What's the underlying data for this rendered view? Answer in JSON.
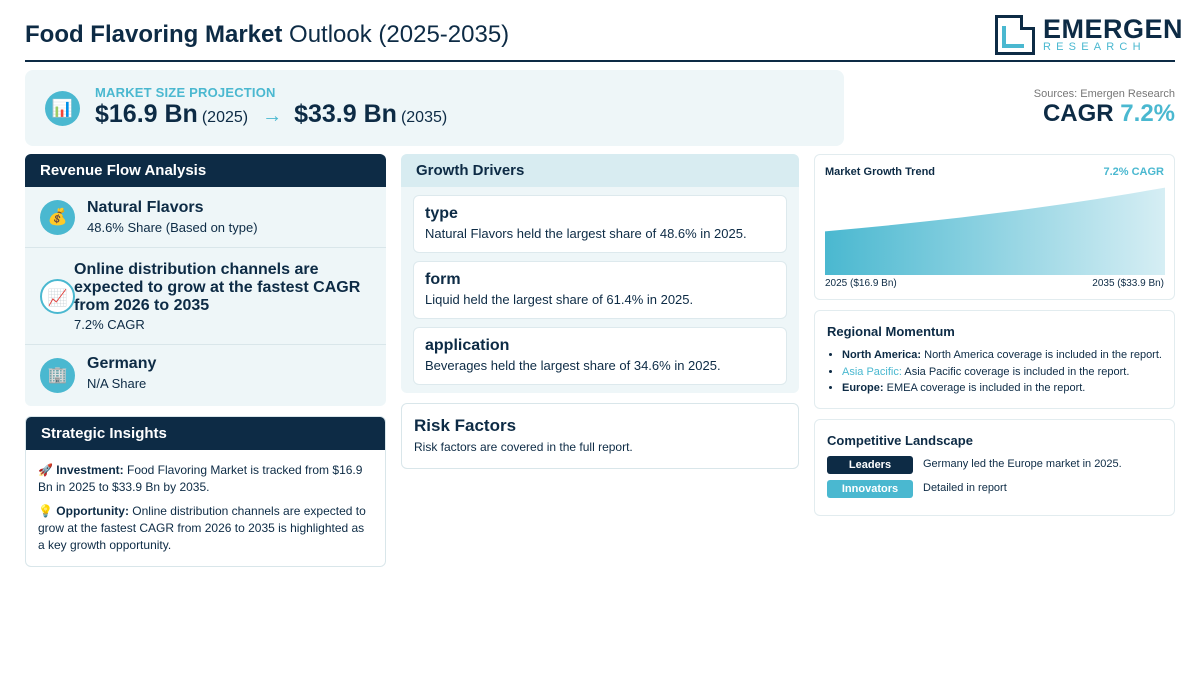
{
  "header": {
    "title_bold": "Food Flavoring Market",
    "title_rest": " Outlook (2025-2035)",
    "logo_name": "EMERGEN",
    "logo_sub": "RESEARCH"
  },
  "projection": {
    "icon": "bar-chart-icon",
    "label": "MARKET SIZE PROJECTION",
    "start_value": "$16.9 Bn",
    "start_year": "(2025)",
    "arrow": "→",
    "end_value": "$33.9 Bn",
    "end_year": "(2035)"
  },
  "summary": {
    "sources": "Sources: Emergen Research",
    "cagr_label": "CAGR",
    "cagr_value": "7.2%"
  },
  "revenue_flow": {
    "title": "Revenue Flow Analysis",
    "items": [
      {
        "icon": "money-bag-icon",
        "title": "Natural Flavors",
        "subtitle": "48.6% Share (Based on type)"
      },
      {
        "icon": "trend-chart-icon",
        "title": "Online distribution channels are expected to grow at the fastest CAGR from 2026 to 2035",
        "subtitle": "7.2% CAGR"
      },
      {
        "icon": "office-building-icon",
        "title": "Germany",
        "subtitle": "N/A Share"
      }
    ]
  },
  "strategic_insights": {
    "title": "Strategic Insights",
    "items": [
      {
        "icon": "🚀",
        "label": "Investment:",
        "text": " Food Flavoring Market is tracked from $16.9 Bn in 2025 to $33.9 Bn by 2035."
      },
      {
        "icon": "💡",
        "label": "Opportunity:",
        "text": " Online distribution channels are expected to grow at the fastest CAGR from 2026 to 2035 is highlighted as a key growth opportunity."
      }
    ]
  },
  "growth_drivers": {
    "title": "Growth Drivers",
    "items": [
      {
        "title": "type",
        "desc": "Natural Flavors held the largest share of 48.6% in 2025."
      },
      {
        "title": "form",
        "desc": "Liquid held the largest share of 61.4% in 2025."
      },
      {
        "title": "application",
        "desc": "Beverages held the largest share of 34.6% in 2025."
      }
    ]
  },
  "risk_factors": {
    "title": "Risk Factors",
    "desc": "Risk factors are covered in the full report."
  },
  "chart_data": {
    "type": "area",
    "title": "Market Growth Trend",
    "annotation": "7.2% CAGR",
    "x": [
      2025,
      2035
    ],
    "series": [
      {
        "values": [
          16.9,
          33.9
        ]
      }
    ],
    "start_label": "2025 ($16.9 Bn)",
    "end_label": "2035 ($33.9 Bn)",
    "grid": false,
    "fill_color_start": "#4ab8d0",
    "fill_color_end": "#d6eef4"
  },
  "regional_momentum": {
    "title": "Regional Momentum",
    "items": [
      {
        "name": "North America:",
        "text": " North America coverage is included in the report.",
        "highlight": false
      },
      {
        "name": "Asia Pacific:",
        "text": " Asia Pacific coverage is included in the report.",
        "highlight": true
      },
      {
        "name": "Europe:",
        "text": " EMEA coverage is included in the report.",
        "highlight": false
      }
    ]
  },
  "competitive_landscape": {
    "title": "Competitive Landscape",
    "items": [
      {
        "badge": "Leaders",
        "text": "Germany led the Europe market in 2025."
      },
      {
        "badge": "Innovators",
        "text": "Detailed in report"
      }
    ]
  },
  "colors": {
    "navy": "#0d2b45",
    "accent": "#4ab8d0",
    "panel_bg": "#eef6f8"
  }
}
